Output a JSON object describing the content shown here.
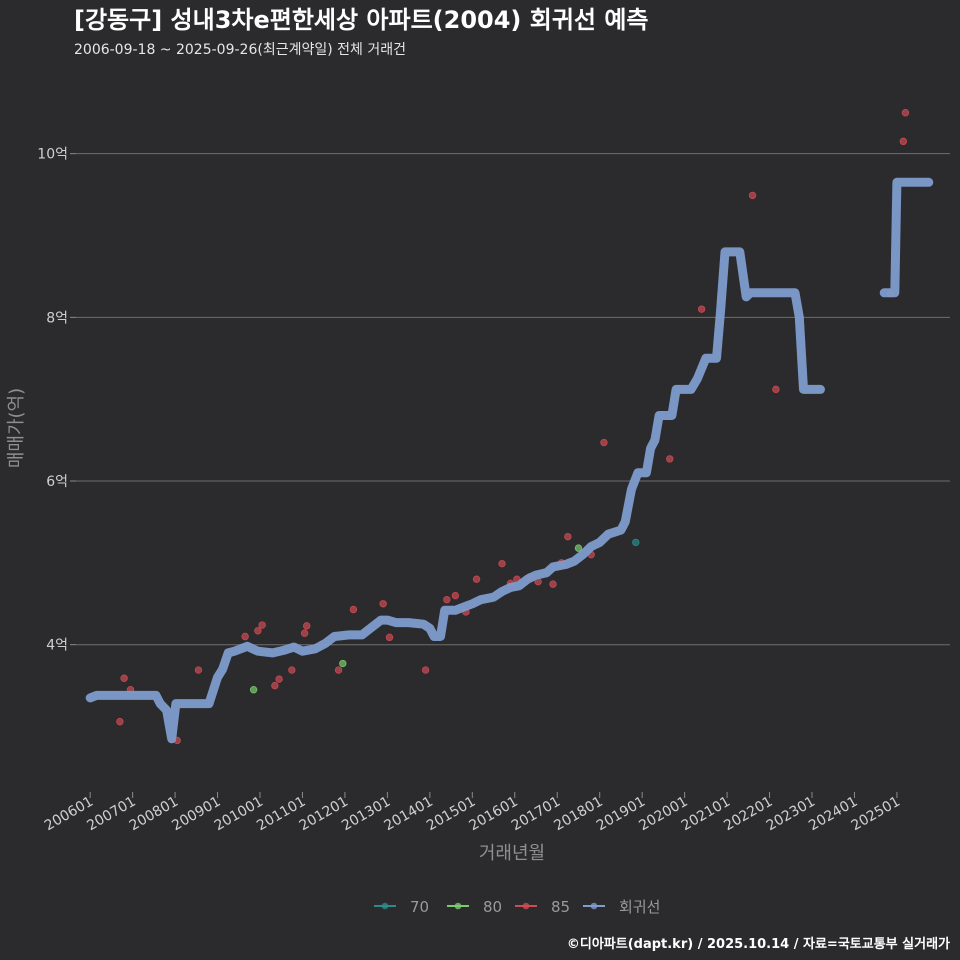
{
  "chart_data": {
    "type": "scatter",
    "title": "[강동구] 성내3차e편한세상 아파트(2004) 회귀선 예측",
    "subtitle": "2006-09-18 ~ 2025-09-26(최근계약일) 전체 거래건",
    "xlabel": "거래년월",
    "ylabel": "매매가(억)",
    "ylim": [
      2.2,
      10.9
    ],
    "x_range": [
      "2005-09",
      "2026-04"
    ],
    "y_ticks": [
      {
        "value": 4,
        "label": "4억"
      },
      {
        "value": 6,
        "label": "6억"
      },
      {
        "value": 8,
        "label": "8억"
      },
      {
        "value": 10,
        "label": "10억"
      }
    ],
    "x_ticks": [
      "200601",
      "200701",
      "200801",
      "200901",
      "201001",
      "201101",
      "201201",
      "201301",
      "201401",
      "201501",
      "201601",
      "201701",
      "201801",
      "201901",
      "202001",
      "202101",
      "202201",
      "202301",
      "202401",
      "202501"
    ],
    "colors": {
      "70": "#2a8c8c",
      "80": "#7acb6e",
      "85": "#cc4b54",
      "regression": "#7e9ccc"
    },
    "legend": [
      {
        "key": "70",
        "label": "70"
      },
      {
        "key": "80",
        "label": "80"
      },
      {
        "key": "85",
        "label": "85"
      },
      {
        "key": "regression",
        "label": "회귀선"
      }
    ],
    "series": [
      {
        "name": "70",
        "points": [
          [
            2018.85,
            5.25
          ]
        ]
      },
      {
        "name": "80",
        "points": [
          [
            2009.85,
            3.45
          ],
          [
            2011.95,
            3.77
          ],
          [
            2017.5,
            5.18
          ]
        ]
      },
      {
        "name": "85",
        "points": [
          [
            2006.7,
            3.06
          ],
          [
            2006.8,
            3.59
          ],
          [
            2006.95,
            3.45
          ],
          [
            2008.05,
            2.83
          ],
          [
            2008.55,
            3.69
          ],
          [
            2009.65,
            4.1
          ],
          [
            2009.95,
            4.17
          ],
          [
            2010.05,
            4.24
          ],
          [
            2010.35,
            3.5
          ],
          [
            2010.45,
            3.58
          ],
          [
            2010.75,
            3.69
          ],
          [
            2011.05,
            4.14
          ],
          [
            2011.1,
            4.23
          ],
          [
            2011.85,
            3.69
          ],
          [
            2012.2,
            4.43
          ],
          [
            2012.9,
            4.5
          ],
          [
            2013.05,
            4.09
          ],
          [
            2013.9,
            3.69
          ],
          [
            2014.4,
            4.55
          ],
          [
            2014.6,
            4.6
          ],
          [
            2014.85,
            4.4
          ],
          [
            2015.1,
            4.8
          ],
          [
            2015.7,
            4.99
          ],
          [
            2015.9,
            4.75
          ],
          [
            2016.05,
            4.8
          ],
          [
            2016.35,
            4.83
          ],
          [
            2016.55,
            4.77
          ],
          [
            2016.9,
            4.74
          ],
          [
            2017.1,
            5.0
          ],
          [
            2017.25,
            5.32
          ],
          [
            2017.8,
            5.1
          ],
          [
            2018.1,
            6.47
          ],
          [
            2019.65,
            6.27
          ],
          [
            2020.4,
            8.1
          ],
          [
            2021.6,
            9.49
          ],
          [
            2022.15,
            7.12
          ],
          [
            2024.85,
            8.29
          ],
          [
            2025.15,
            10.15
          ],
          [
            2025.2,
            10.5
          ]
        ]
      }
    ],
    "regression": [
      [
        [
          2006.0,
          3.35
        ],
        [
          2006.15,
          3.38
        ],
        [
          2006.9,
          3.38
        ],
        [
          2007.55,
          3.38
        ],
        [
          2007.65,
          3.28
        ],
        [
          2007.8,
          3.2
        ],
        [
          2007.92,
          2.85
        ],
        [
          2008.02,
          3.28
        ],
        [
          2008.8,
          3.28
        ],
        [
          2009.0,
          3.6
        ],
        [
          2009.12,
          3.7
        ],
        [
          2009.25,
          3.9
        ],
        [
          2009.4,
          3.92
        ],
        [
          2009.7,
          3.98
        ],
        [
          2009.95,
          3.92
        ],
        [
          2010.3,
          3.9
        ],
        [
          2010.55,
          3.93
        ],
        [
          2010.8,
          3.97
        ],
        [
          2011.0,
          3.92
        ],
        [
          2011.3,
          3.95
        ],
        [
          2011.55,
          4.02
        ],
        [
          2011.75,
          4.1
        ],
        [
          2012.1,
          4.12
        ],
        [
          2012.4,
          4.12
        ],
        [
          2012.6,
          4.2
        ],
        [
          2012.85,
          4.3
        ],
        [
          2013.0,
          4.3
        ],
        [
          2013.2,
          4.27
        ],
        [
          2013.5,
          4.27
        ],
        [
          2013.85,
          4.25
        ],
        [
          2014.0,
          4.2
        ],
        [
          2014.1,
          4.1
        ],
        [
          2014.25,
          4.1
        ],
        [
          2014.35,
          4.42
        ],
        [
          2014.6,
          4.42
        ],
        [
          2014.85,
          4.47
        ],
        [
          2015.0,
          4.5
        ],
        [
          2015.2,
          4.55
        ],
        [
          2015.5,
          4.58
        ],
        [
          2015.7,
          4.65
        ],
        [
          2015.9,
          4.7
        ],
        [
          2016.1,
          4.72
        ],
        [
          2016.3,
          4.8
        ],
        [
          2016.5,
          4.85
        ],
        [
          2016.75,
          4.88
        ],
        [
          2016.9,
          4.95
        ],
        [
          2017.2,
          4.98
        ],
        [
          2017.4,
          5.02
        ],
        [
          2017.6,
          5.1
        ],
        [
          2017.8,
          5.2
        ],
        [
          2018.0,
          5.25
        ],
        [
          2018.2,
          5.35
        ],
        [
          2018.5,
          5.4
        ],
        [
          2018.6,
          5.5
        ],
        [
          2018.75,
          5.9
        ],
        [
          2018.9,
          6.1
        ],
        [
          2019.1,
          6.1
        ],
        [
          2019.2,
          6.4
        ],
        [
          2019.3,
          6.5
        ],
        [
          2019.4,
          6.8
        ],
        [
          2019.7,
          6.8
        ],
        [
          2019.8,
          7.12
        ],
        [
          2020.15,
          7.12
        ],
        [
          2020.3,
          7.25
        ],
        [
          2020.5,
          7.5
        ],
        [
          2020.75,
          7.5
        ],
        [
          2020.85,
          8.1
        ],
        [
          2020.95,
          8.8
        ],
        [
          2021.3,
          8.8
        ],
        [
          2021.45,
          8.25
        ],
        [
          2021.55,
          8.3
        ],
        [
          2022.6,
          8.3
        ],
        [
          2022.7,
          8.0
        ],
        [
          2022.8,
          7.12
        ],
        [
          2023.2,
          7.12
        ]
      ],
      [
        [
          2024.7,
          8.3
        ],
        [
          2024.95,
          8.3
        ],
        [
          2025.0,
          9.65
        ],
        [
          2025.75,
          9.65
        ]
      ]
    ],
    "caption": "©디아파트(dapt.kr) / 2025.10.14 / 자료=국토교통부 실거래가"
  }
}
